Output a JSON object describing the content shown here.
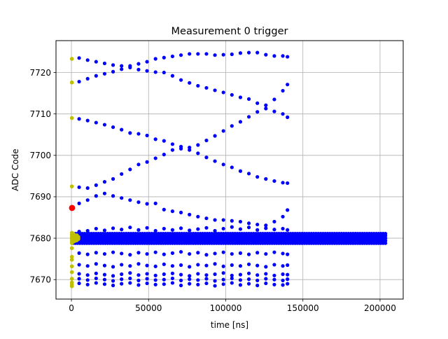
{
  "chart_data": {
    "type": "scatter",
    "title": "Measurement 0 trigger",
    "xlabel": "time [ns]",
    "ylabel": "ADC Code",
    "xlim": [
      -10000,
      215000
    ],
    "ylim": [
      7665.3,
      7727.7
    ],
    "xticks": [
      0,
      50000,
      100000,
      150000,
      200000
    ],
    "xtick_labels": [
      "0",
      "50000",
      "100000",
      "150000",
      "200000"
    ],
    "yticks": [
      7670,
      7680,
      7690,
      7700,
      7710,
      7720
    ],
    "ytick_labels": [
      "7670",
      "7680",
      "7690",
      "7700",
      "7710",
      "7720"
    ],
    "grid": true,
    "legend": "none",
    "colors": {
      "main": "#0000ff",
      "pre": "#bfbf00",
      "trigger": "#ff0000"
    },
    "series": [
      {
        "color": "#bfbf00",
        "points": [
          [
            300,
            7723.3
          ],
          [
            300,
            7717.6
          ],
          [
            300,
            7709.0
          ],
          [
            300,
            7692.5
          ],
          [
            300,
            7681.3
          ],
          [
            300,
            7680.8
          ],
          [
            300,
            7680.3
          ],
          [
            300,
            7679.8
          ],
          [
            300,
            7679.3
          ],
          [
            300,
            7678.8
          ],
          [
            300,
            7677.6
          ],
          [
            300,
            7675.5
          ],
          [
            300,
            7674.8
          ],
          [
            300,
            7673.2
          ],
          [
            300,
            7671.8
          ],
          [
            300,
            7670.2
          ],
          [
            300,
            7669.3
          ],
          [
            300,
            7668.8
          ],
          [
            300,
            7668.4
          ],
          [
            1500,
            7681.0
          ],
          [
            1500,
            7680.4
          ],
          [
            1500,
            7679.8
          ],
          [
            1500,
            7679.2
          ],
          [
            2500,
            7680.6
          ],
          [
            2500,
            7679.9
          ],
          [
            2500,
            7679.4
          ],
          [
            3500,
            7680.7
          ],
          [
            3500,
            7680.1
          ],
          [
            3500,
            7679.5
          ],
          [
            4500,
            7680.3
          ],
          [
            4500,
            7679.8
          ]
        ]
      },
      {
        "color": "#ff0000",
        "points": [
          [
            400,
            7687.3
          ]
        ]
      },
      {
        "color": "#0000ff",
        "band": {
          "x_start": 1000,
          "x_end": 204000,
          "x_step": 1500,
          "y_levels": [
            7678.8,
            7679.4,
            7680.0,
            7680.6,
            7681.1
          ]
        },
        "tracks": [
          {
            "y": [
              7723.5,
              7723.0,
              7722.6,
              7722.2,
              7721.8,
              7721.6,
              7721.6,
              7722.1,
              7722.6,
              7723.3,
              7723.6,
              7723.9,
              7724.2,
              7724.5,
              7724.5,
              7724.5,
              7724.2,
              7724.3,
              7724.4,
              7724.7,
              7724.8,
              7724.8,
              7724.3,
              7724.0,
              7724.0,
              7723.8
            ]
          },
          {
            "y": [
              7717.8,
              7718.5,
              7719.2,
              7719.7,
              7720.2,
              7720.8,
              7721.2,
              7720.7,
              7720.4,
              7720.1,
              7720.0,
              7719.2,
              7718.2,
              7717.5,
              7716.8,
              7716.3,
              7715.7,
              7715.2,
              7714.6,
              7714.0,
              7713.6,
              7712.6,
              7712.1,
              7713.5,
              7715.6,
              7717.1
            ]
          },
          {
            "y": [
              7708.8,
              7708.4,
              7707.9,
              7707.4,
              7706.8,
              7706.2,
              7705.4,
              7705.2,
              7704.8,
              7703.9,
              7703.5,
              7702.7,
              7701.6,
              7701.9,
              7702.5,
              7703.6,
              7704.7,
              7705.9,
              7707.1,
              7708.1,
              7709.3,
              7710.5,
              7711.3,
              7710.6,
              7710.0,
              7709.2
            ]
          },
          {
            "y": [
              7692.3,
              7692.1,
              7692.8,
              7693.6,
              7694.3,
              7695.5,
              7696.6,
              7697.8,
              7698.4,
              7699.3,
              7700.2,
              7701.3,
              7702.1,
              7701.3,
              7700.5,
              7699.5,
              7698.6,
              7697.8,
              7697.1,
              7696.2,
              7695.6,
              7694.8,
              7694.3,
              7693.8,
              7693.4,
              7693.3
            ]
          },
          {
            "y": [
              7688.4,
              7689.2,
              7690.2,
              7690.8,
              7690.2,
              7689.7,
              7689.2,
              7688.7,
              7688.3,
              7688.4,
              7686.9,
              7686.5,
              7686.2,
              7685.7,
              7685.2,
              7684.8,
              7684.4,
              7684.4,
              7684.2,
              7684.0,
              7683.6,
              7683.3,
              7683.1,
              7684.0,
              7685.2,
              7686.8
            ]
          },
          {
            "y": [
              7681.6,
              7681.8,
              7682.3,
              7681.9,
              7682.4,
              7682.1,
              7682.6,
              7682.0,
              7682.5,
              7681.8,
              7682.3,
              7682.0,
              7682.4,
              7681.9,
              7682.2,
              7682.5,
              7681.8,
              7682.3,
              7682.7,
              7682.2,
              7682.6,
              7682.0,
              7682.4,
              7682.1,
              7682.3,
              7682.0
            ]
          },
          {
            "y": [
              7676.4,
              7676.1,
              7676.5,
              7676.2,
              7676.6,
              7676.3,
              7676.0,
              7676.5,
              7676.2,
              7676.6,
              7676.1,
              7676.4,
              7676.7,
              7676.2,
              7676.5,
              7676.0,
              7676.3,
              7676.6,
              7676.2,
              7676.4,
              7676.1,
              7676.5,
              7676.2,
              7676.6,
              7676.3,
              7676.1
            ]
          },
          {
            "y": [
              7673.6,
              7673.3,
              7673.8,
              7673.4,
              7673.1,
              7673.6,
              7673.3,
              7673.8,
              7673.4,
              7673.2,
              7673.7,
              7673.3,
              7673.5,
              7673.1,
              7673.6,
              7673.4,
              7673.8,
              7673.2,
              7673.5,
              7673.3,
              7673.7,
              7673.4,
              7673.1,
              7673.6,
              7673.3,
              7673.5
            ]
          },
          {
            "y": [
              7671.4,
              7671.1,
              7671.5,
              7671.2,
              7670.9,
              7671.3,
              7671.6,
              7671.1,
              7671.4,
              7671.0,
              7671.3,
              7671.5,
              7671.2,
              7670.9,
              7671.4,
              7671.1,
              7671.3,
              7671.6,
              7671.0,
              7671.2,
              7671.5,
              7671.1,
              7671.4,
              7671.0,
              7671.3,
              7671.2
            ]
          },
          {
            "y": [
              7670.2,
              7669.9,
              7670.3,
              7670.0,
              7669.7,
              7670.1,
              7670.3,
              7669.8,
              7670.2,
              7669.9,
              7670.0,
              7670.3,
              7669.8,
              7670.1,
              7669.9,
              7670.2,
              7669.7,
              7670.0,
              7670.3,
              7669.9,
              7670.1,
              7669.8,
              7670.2,
              7670.0,
              7669.8,
              7670.1
            ]
          },
          {
            "y": [
              7669.1,
              7668.8,
              7669.2,
              7668.9,
              7668.6,
              7669.0,
              7669.2,
              7668.7,
              7669.1,
              7668.8,
              7668.9,
              7669.2,
              7668.6,
              7669.0,
              7668.8,
              7669.1,
              7668.5,
              7668.9,
              7669.2,
              7668.7,
              7669.0,
              7668.6,
              7669.1,
              7668.8,
              7668.7,
              7669.0
            ]
          }
        ],
        "track_x": [
          5000,
          10500,
          16000,
          21500,
          27000,
          32500,
          38000,
          43500,
          49000,
          54500,
          60000,
          65500,
          71000,
          76500,
          82000,
          87500,
          93000,
          98500,
          104000,
          109500,
          115000,
          120500,
          126000,
          131500,
          137000,
          140000
        ]
      }
    ]
  }
}
